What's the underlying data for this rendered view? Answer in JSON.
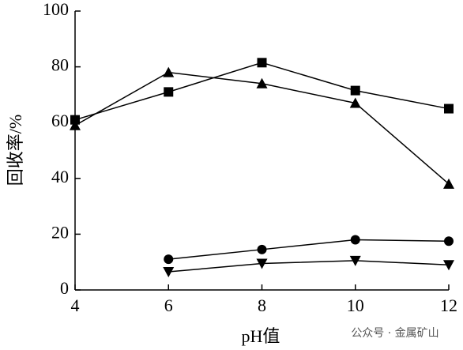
{
  "chart_data": {
    "type": "line",
    "x_label": "pH值",
    "y_label": "回收率/%",
    "x": [
      4,
      6,
      8,
      10,
      12
    ],
    "xlim": [
      4,
      12
    ],
    "xticks": [
      4,
      6,
      8,
      10,
      12
    ],
    "ylim": [
      0,
      100
    ],
    "yticks": [
      0,
      20,
      40,
      60,
      80,
      100
    ],
    "series": [
      {
        "marker": "square",
        "color": "#000000",
        "values": [
          61,
          71,
          81.5,
          71.5,
          65
        ]
      },
      {
        "marker": "triangle-up",
        "color": "#000000",
        "values": [
          59,
          78,
          74,
          67,
          38
        ]
      },
      {
        "marker": "circle",
        "color": "#000000",
        "values": [
          null,
          11,
          14.5,
          18,
          17.5
        ]
      },
      {
        "marker": "triangle-down",
        "color": "#000000",
        "values": [
          null,
          6.5,
          9.5,
          10.5,
          9
        ]
      }
    ],
    "watermark": "公众号 · 金属矿山"
  }
}
